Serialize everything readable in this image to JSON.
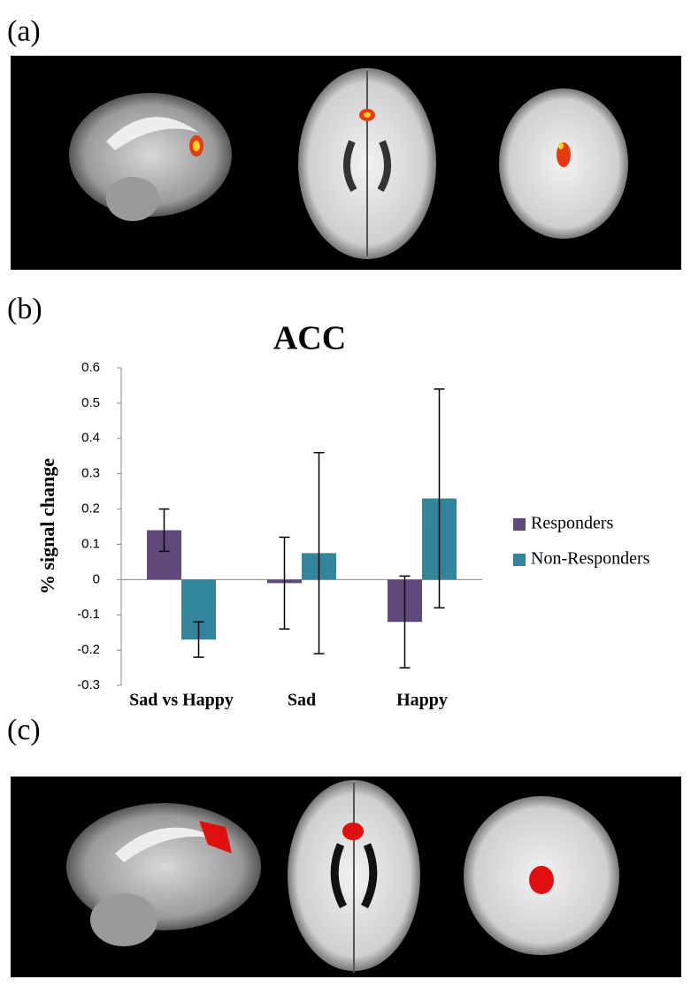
{
  "panels": {
    "a": "(a)",
    "b": "(b)",
    "c": "(c)"
  },
  "chart_data": {
    "type": "bar",
    "title": "ACC",
    "y_label": "% signal change",
    "categories": [
      "Sad vs Happy",
      "Sad",
      "Happy"
    ],
    "series": [
      {
        "name": "Responders",
        "color": "#604a7b",
        "values": [
          0.14,
          -0.01,
          -0.12
        ],
        "errors": [
          0.06,
          0.13,
          0.13
        ]
      },
      {
        "name": "Non-Responders",
        "color": "#31859c",
        "values": [
          -0.17,
          0.075,
          0.23
        ],
        "errors": [
          0.05,
          0.285,
          0.31
        ]
      }
    ],
    "ylim": [
      -0.3,
      0.6
    ],
    "yticks": [
      -0.3,
      -0.2,
      -0.1,
      0,
      0.1,
      0.2,
      0.3,
      0.4,
      0.5,
      0.6
    ],
    "legend": "right"
  }
}
